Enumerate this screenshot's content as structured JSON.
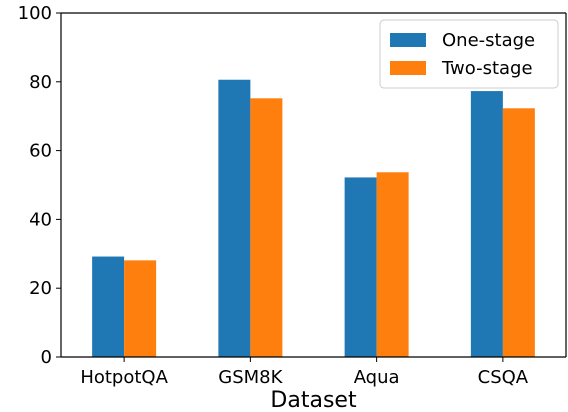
{
  "chart_data": {
    "type": "bar",
    "categories": [
      "HotpotQA",
      "GSM8K",
      "Aqua",
      "CSQA"
    ],
    "series": [
      {
        "name": "One-stage",
        "values": [
          29.2,
          80.6,
          52.2,
          77.3
        ],
        "color": "#1f77b4"
      },
      {
        "name": "Two-stage",
        "values": [
          28.1,
          75.2,
          53.7,
          72.3
        ],
        "color": "#ff7f0e"
      }
    ],
    "title": "",
    "xlabel": "Dataset",
    "ylabel": "",
    "ylim": [
      0,
      100
    ],
    "yticks": [
      0,
      20,
      40,
      60,
      80,
      100
    ],
    "grid": false,
    "legend_position": "top-right"
  }
}
